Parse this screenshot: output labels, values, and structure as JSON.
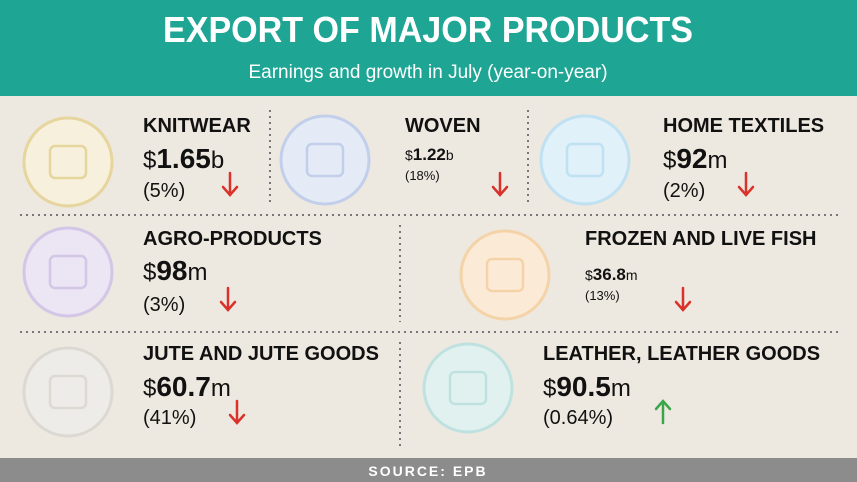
{
  "header": {
    "title": "EXPORT OF MAJOR PRODUCTS",
    "subtitle": "Earnings and growth in July (year-on-year)"
  },
  "items": [
    {
      "name": "KNITWEAR",
      "currency": "$",
      "amount": "1.65",
      "unit": "b",
      "growth": "(5%)",
      "trend": "down"
    },
    {
      "name": "WOVEN",
      "currency": "$",
      "amount": "1.22",
      "unit": "b",
      "growth": "(18%)",
      "trend": "down"
    },
    {
      "name": "HOME TEXTILES",
      "currency": "$",
      "amount": "92",
      "unit": "m",
      "growth": "(2%)",
      "trend": "down"
    },
    {
      "name": "AGRO-PRODUCTS",
      "currency": "$",
      "amount": "98",
      "unit": "m",
      "growth": "(3%)",
      "trend": "down"
    },
    {
      "name": "FROZEN AND LIVE FISH",
      "currency": "$",
      "amount": "36.8",
      "unit": "m",
      "growth": "(13%)",
      "trend": "down"
    },
    {
      "name": "JUTE AND JUTE GOODS",
      "currency": "$",
      "amount": "60.7",
      "unit": "m",
      "growth": "(41%)",
      "trend": "down"
    },
    {
      "name": "LEATHER, LEATHER GOODS",
      "currency": "$",
      "amount": "90.5",
      "unit": "m",
      "growth": "(0.64%)",
      "trend": "up"
    }
  ],
  "footer": {
    "source": "SOURCE: EPB"
  }
}
